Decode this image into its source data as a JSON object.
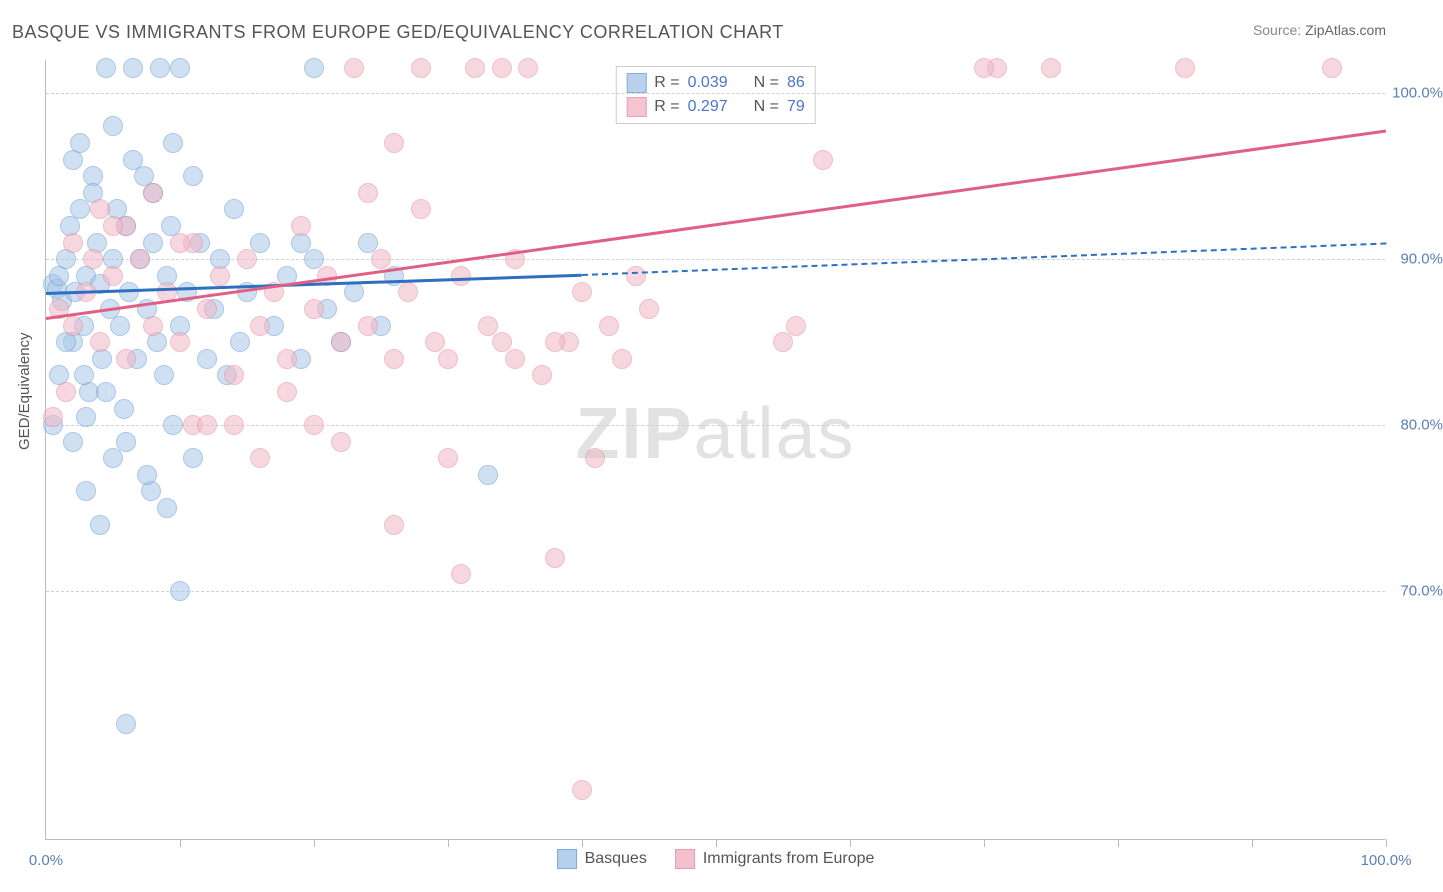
{
  "title": "BASQUE VS IMMIGRANTS FROM EUROPE GED/EQUIVALENCY CORRELATION CHART",
  "source_label": "Source:",
  "source_value": "ZipAtlas.com",
  "yaxis_title": "GED/Equivalency",
  "watermark_a": "ZIP",
  "watermark_b": "atlas",
  "chart": {
    "type": "scatter",
    "xlim": [
      0,
      100
    ],
    "ylim": [
      55,
      102
    ],
    "y_gridlines": [
      70,
      80,
      90,
      100
    ],
    "x_ticks_minor": [
      10,
      20,
      30,
      40,
      50,
      60,
      70,
      80,
      90,
      100
    ],
    "x_labels": [
      {
        "x": 0,
        "text": "0.0%"
      },
      {
        "x": 100,
        "text": "100.0%"
      }
    ],
    "y_labels": [
      {
        "y": 70,
        "text": "70.0%"
      },
      {
        "y": 80,
        "text": "80.0%"
      },
      {
        "y": 90,
        "text": "90.0%"
      },
      {
        "y": 100,
        "text": "100.0%"
      }
    ],
    "grid_color": "#d0d0d0",
    "axis_color": "#bbbbbb",
    "background_color": "#ffffff"
  },
  "series": [
    {
      "key": "basques",
      "label": "Basques",
      "fill": "#a8c7e8",
      "stroke": "#6a9bd1",
      "line_color": "#2f6fc1",
      "fill_opacity": 0.55,
      "marker_r": 10,
      "R": "0.039",
      "N": "86",
      "reg": {
        "x1": 0,
        "y1": 88.0,
        "x2": 40,
        "y2": 89.1,
        "solid_until_x": 40,
        "dash_to_x": 100,
        "dash_y": 91.0
      },
      "points": [
        [
          0.5,
          88.5
        ],
        [
          0.8,
          88.2
        ],
        [
          1,
          89
        ],
        [
          1.2,
          87.5
        ],
        [
          1.5,
          90
        ],
        [
          1.8,
          92
        ],
        [
          2,
          96
        ],
        [
          2,
          85
        ],
        [
          2.2,
          88
        ],
        [
          2.5,
          93
        ],
        [
          2.8,
          86
        ],
        [
          3,
          89
        ],
        [
          3.2,
          82
        ],
        [
          3.5,
          95
        ],
        [
          3.8,
          91
        ],
        [
          4,
          88.5
        ],
        [
          4.2,
          84
        ],
        [
          4.5,
          101.5
        ],
        [
          4.8,
          87
        ],
        [
          5,
          90
        ],
        [
          5,
          78
        ],
        [
          5.3,
          93
        ],
        [
          5.5,
          86
        ],
        [
          5.8,
          81
        ],
        [
          6,
          92
        ],
        [
          6.2,
          88
        ],
        [
          6.5,
          101.5
        ],
        [
          6.8,
          84
        ],
        [
          7,
          90
        ],
        [
          7.3,
          95
        ],
        [
          7.5,
          87
        ],
        [
          7.8,
          76
        ],
        [
          8,
          91
        ],
        [
          8.3,
          85
        ],
        [
          8.5,
          101.5
        ],
        [
          8.8,
          83
        ],
        [
          9,
          89
        ],
        [
          9.3,
          92
        ],
        [
          9.5,
          80
        ],
        [
          10,
          86
        ],
        [
          10,
          101.5
        ],
        [
          10.5,
          88
        ],
        [
          11,
          78
        ],
        [
          11.5,
          91
        ],
        [
          12,
          84
        ],
        [
          12.5,
          87
        ],
        [
          13,
          90
        ],
        [
          13.5,
          83
        ],
        [
          14,
          93
        ],
        [
          14.5,
          85
        ],
        [
          15,
          88
        ],
        [
          16,
          91
        ],
        [
          17,
          86
        ],
        [
          18,
          89
        ],
        [
          19,
          84
        ],
        [
          20,
          90
        ],
        [
          21,
          87
        ],
        [
          22,
          85
        ],
        [
          23,
          88
        ],
        [
          24,
          91
        ],
        [
          25,
          86
        ],
        [
          26,
          89
        ],
        [
          10,
          70
        ],
        [
          6,
          62
        ],
        [
          33,
          77
        ],
        [
          0.5,
          80
        ],
        [
          1,
          83
        ],
        [
          2,
          79
        ],
        [
          3,
          76
        ],
        [
          4,
          74
        ],
        [
          19,
          91
        ],
        [
          20,
          101.5
        ],
        [
          3,
          80.5
        ],
        [
          4.5,
          82
        ],
        [
          6,
          79
        ],
        [
          7.5,
          77
        ],
        [
          9,
          75
        ],
        [
          2.5,
          97
        ],
        [
          3.5,
          94
        ],
        [
          5,
          98
        ],
        [
          6.5,
          96
        ],
        [
          8,
          94
        ],
        [
          9.5,
          97
        ],
        [
          11,
          95
        ],
        [
          1.5,
          85
        ],
        [
          2.8,
          83
        ]
      ]
    },
    {
      "key": "immigrants",
      "label": "Immigrants from Europe",
      "fill": "#f2b7c5",
      "stroke": "#e08da3",
      "line_color": "#e05f84",
      "fill_opacity": 0.55,
      "marker_r": 10,
      "R": "0.297",
      "N": "79",
      "reg": {
        "x1": 0,
        "y1": 86.5,
        "x2": 100,
        "y2": 97.8,
        "solid_until_x": 100
      },
      "points": [
        [
          1,
          87
        ],
        [
          2,
          86
        ],
        [
          3,
          88
        ],
        [
          4,
          85
        ],
        [
          5,
          89
        ],
        [
          6,
          84
        ],
        [
          7,
          90
        ],
        [
          8,
          86
        ],
        [
          9,
          88
        ],
        [
          10,
          85
        ],
        [
          11,
          91
        ],
        [
          12,
          87
        ],
        [
          13,
          89
        ],
        [
          14,
          83
        ],
        [
          15,
          90
        ],
        [
          16,
          86
        ],
        [
          17,
          88
        ],
        [
          18,
          84
        ],
        [
          19,
          92
        ],
        [
          20,
          87
        ],
        [
          21,
          89
        ],
        [
          22,
          85
        ],
        [
          23,
          101.5
        ],
        [
          24,
          86
        ],
        [
          25,
          90
        ],
        [
          26,
          84
        ],
        [
          27,
          88
        ],
        [
          28,
          101.5
        ],
        [
          29,
          85
        ],
        [
          30,
          78
        ],
        [
          31,
          89
        ],
        [
          32,
          101.5
        ],
        [
          33,
          86
        ],
        [
          34,
          101.5
        ],
        [
          35,
          90
        ],
        [
          36,
          101.5
        ],
        [
          37,
          83
        ],
        [
          38,
          72
        ],
        [
          39,
          85
        ],
        [
          40,
          88
        ],
        [
          41,
          78
        ],
        [
          42,
          86
        ],
        [
          43,
          84
        ],
        [
          44,
          89
        ],
        [
          45,
          87
        ],
        [
          56,
          86
        ],
        [
          71,
          101.5
        ],
        [
          75,
          101.5
        ],
        [
          85,
          101.5
        ],
        [
          96,
          101.5
        ],
        [
          58,
          96
        ],
        [
          70,
          101.5
        ],
        [
          40,
          58
        ],
        [
          11,
          80
        ],
        [
          14,
          80
        ],
        [
          18,
          82
        ],
        [
          22,
          79
        ],
        [
          26,
          74
        ],
        [
          30,
          84
        ],
        [
          34,
          85
        ],
        [
          24,
          94
        ],
        [
          26,
          97
        ],
        [
          28,
          93
        ],
        [
          4,
          93
        ],
        [
          6,
          92
        ],
        [
          8,
          94
        ],
        [
          10,
          91
        ],
        [
          2,
          91
        ],
        [
          3.5,
          90
        ],
        [
          5,
          92
        ],
        [
          31,
          71
        ],
        [
          0.5,
          80.5
        ],
        [
          1.5,
          82
        ],
        [
          12,
          80
        ],
        [
          16,
          78
        ],
        [
          20,
          80
        ],
        [
          55,
          85
        ],
        [
          35,
          84
        ],
        [
          38,
          85
        ]
      ]
    }
  ],
  "stats_box": {
    "border_color": "#cccccc",
    "bg": "#ffffff",
    "label_R": "R =",
    "label_N": "N ="
  },
  "bottom_legend": {
    "items": [
      {
        "series": "basques"
      },
      {
        "series": "immigrants"
      }
    ]
  }
}
